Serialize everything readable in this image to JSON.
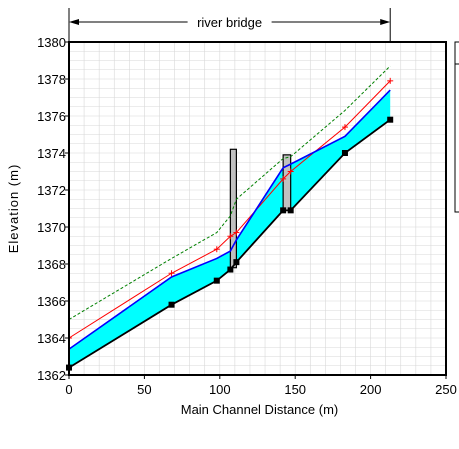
{
  "chart_data": {
    "type": "line",
    "xlabel": "Main Channel Distance (m)",
    "ylabel": "Elevation (m)",
    "xlim": [
      0,
      250
    ],
    "ylim": [
      1362,
      1380
    ],
    "xticks": [
      "0",
      "50",
      "100",
      "150",
      "200",
      "250"
    ],
    "yticks": [
      "1362",
      "1364",
      "1366",
      "1368",
      "1370",
      "1372",
      "1374",
      "1376",
      "1378",
      "1380"
    ],
    "grid": true,
    "legend": "right (partially visible, empty)",
    "annotation": {
      "label": "river bridge",
      "x_start": 0,
      "x_end": 213
    },
    "bridge_piers": [
      {
        "x0": 107,
        "x1": 111,
        "y_bottom": 1367.8,
        "y_top": 1374.2
      },
      {
        "x0": 142,
        "x1": 147,
        "y_bottom": 1370.9,
        "y_top": 1373.9
      }
    ],
    "series": [
      {
        "role": "ground",
        "color": "#000000",
        "marker": "square",
        "x": [
          0,
          68,
          98,
          107,
          111,
          142,
          147,
          183,
          213
        ],
        "y": [
          1362.4,
          1365.8,
          1367.1,
          1367.7,
          1368.1,
          1370.9,
          1370.9,
          1374.0,
          1375.8
        ]
      },
      {
        "role": "water-surface",
        "color": "#0000ff",
        "fill": "#00ffff",
        "x": [
          0,
          68,
          98,
          107,
          111,
          142,
          147,
          183,
          213
        ],
        "y": [
          1363.4,
          1367.3,
          1368.3,
          1368.7,
          1369.3,
          1373.2,
          1373.4,
          1374.9,
          1377.4
        ]
      },
      {
        "role": "critical-depth",
        "color": "#ff0000",
        "marker": "plus",
        "x": [
          0,
          68,
          98,
          107,
          111,
          142,
          147,
          183,
          213
        ],
        "y": [
          1364.0,
          1367.5,
          1368.8,
          1369.5,
          1369.7,
          1372.6,
          1373.0,
          1375.4,
          1377.9
        ]
      },
      {
        "role": "energy-grade",
        "color": "#008000",
        "dash": true,
        "x": [
          0,
          68,
          98,
          107,
          111,
          142,
          147,
          183,
          213
        ],
        "y": [
          1365.0,
          1368.3,
          1369.7,
          1370.6,
          1371.5,
          1373.7,
          1373.8,
          1376.3,
          1378.7
        ]
      }
    ]
  }
}
